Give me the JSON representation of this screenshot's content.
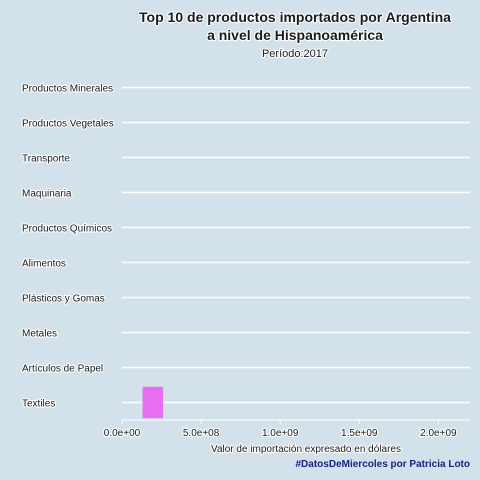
{
  "chart_data": {
    "type": "bar",
    "orientation": "horizontal",
    "title_lines": [
      "Top 10 de productos importados por Argentina",
      "a nivel de Hispanoamérica"
    ],
    "subtitle": "Período:2017",
    "xlabel": "Valor de importación expresado en dólares",
    "ylabel": "",
    "categories": [
      "Productos Minerales",
      "Productos Vegetales",
      "Transporte",
      "Maquinaria",
      "Productos Químicos",
      "Alimentos",
      "Plásticos y Gomas",
      "Metales",
      "Artículos de Papel",
      "Textiles"
    ],
    "bars": [
      {
        "category": "Textiles",
        "start": 130000000,
        "end": 260000000
      }
    ],
    "xlim": [
      0,
      2200000000
    ],
    "x_ticks": [
      0,
      500000000,
      1000000000,
      1500000000,
      2000000000
    ],
    "x_tick_labels": [
      "0.0e+00",
      "5.0e+08",
      "1.0e+09",
      "1.5e+09",
      "2.0e+09"
    ],
    "bar_color": "#e76ef0",
    "grid": true,
    "grid_color": "#ffffff",
    "legend": "none"
  },
  "caption": "#DatosDeMiercoles por Patricia Loto"
}
